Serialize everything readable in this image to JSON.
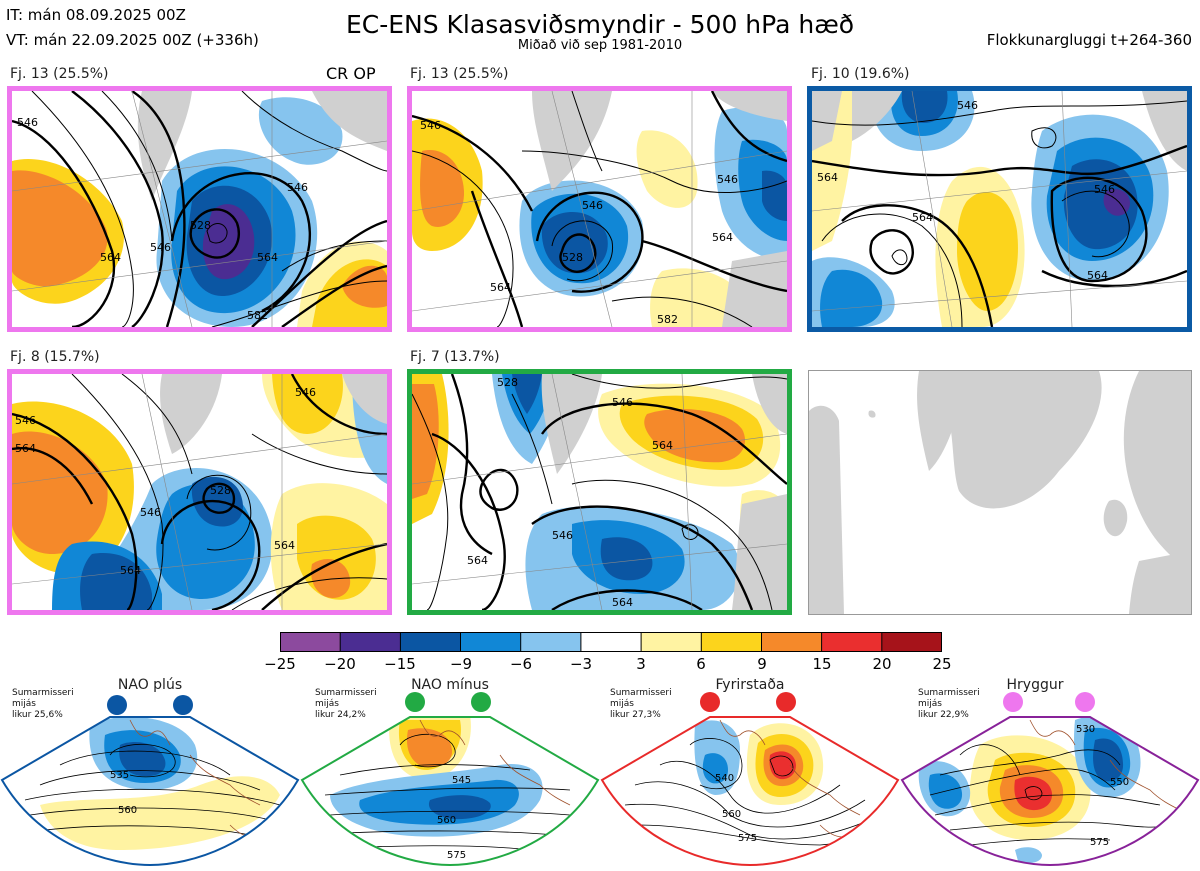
{
  "header": {
    "it_line": "IT: mán 08.09.2025 00Z",
    "vt_line": "VT: mán 22.09.2025 00Z  (+336h)",
    "title": "EC-ENS Klasasviðsmyndir - 500 hPa hæð",
    "subtitle": "Miðað við sep 1981-2010",
    "window": "Flokkunargluggi t+264-360"
  },
  "clusters": [
    {
      "label": "Fj. 13 (25.5%)",
      "extra": "CR OP",
      "frame": "#ee77ee",
      "contours": [
        "546",
        "528",
        "546",
        "564",
        "582",
        "564",
        "546"
      ]
    },
    {
      "label": "Fj. 13 (25.5%)",
      "extra": "",
      "frame": "#ee77ee",
      "contours": [
        "546",
        "528",
        "546",
        "564",
        "564",
        "546",
        "582"
      ]
    },
    {
      "label": "Fj. 10 (19.6%)",
      "extra": "",
      "frame": "#0b5aa5",
      "contours": [
        "546",
        "564",
        "564",
        "546",
        "564"
      ]
    },
    {
      "label": "Fj. 8 (15.7%)",
      "extra": "",
      "frame": "#ee77ee",
      "contours": [
        "546",
        "564",
        "528",
        "546",
        "564",
        "546",
        "564"
      ]
    },
    {
      "label": "Fj. 7 (13.7%)",
      "extra": "",
      "frame": "#22aa44",
      "contours": [
        "528",
        "546",
        "564",
        "546",
        "564",
        "564"
      ]
    }
  ],
  "colorbar": {
    "ticks": [
      "−25",
      "−20",
      "−15",
      "−9",
      "−6",
      "−3",
      "3",
      "6",
      "9",
      "15",
      "20",
      "25"
    ],
    "colors": [
      "#8c4a9e",
      "#4b2d92",
      "#0b56a3",
      "#1187d6",
      "#86c4ee",
      "#ffffff",
      "#fff3a2",
      "#fcd41c",
      "#f5892a",
      "#ea2f2f",
      "#a6131a"
    ]
  },
  "regimes": [
    {
      "name": "NAO plús",
      "info1": "Sumarmisseri",
      "info2": "mijás",
      "info3": "likur 25,6%",
      "dot": "#0b56a3",
      "border": "#0b56a3",
      "labels": [
        "535",
        "560"
      ]
    },
    {
      "name": "NAO mínus",
      "info1": "Sumarmisseri",
      "info2": "mijás",
      "info3": "likur 24,2%",
      "dot": "#22aa44",
      "border": "#22aa44",
      "labels": [
        "545",
        "560",
        "575"
      ]
    },
    {
      "name": "Fyrirstaða",
      "info1": "Sumarmisseri",
      "info2": "mijás",
      "info3": "likur 27,3%",
      "dot": "#e82a2a",
      "border": "#e82a2a",
      "labels": [
        "540",
        "560",
        "575"
      ]
    },
    {
      "name": "Hryggur",
      "info1": "Sumarmisseri",
      "info2": "mijás",
      "info3": "likur 22,9%",
      "dot": "#ee77ee",
      "border": "#882299",
      "labels": [
        "530",
        "550",
        "575"
      ]
    }
  ]
}
